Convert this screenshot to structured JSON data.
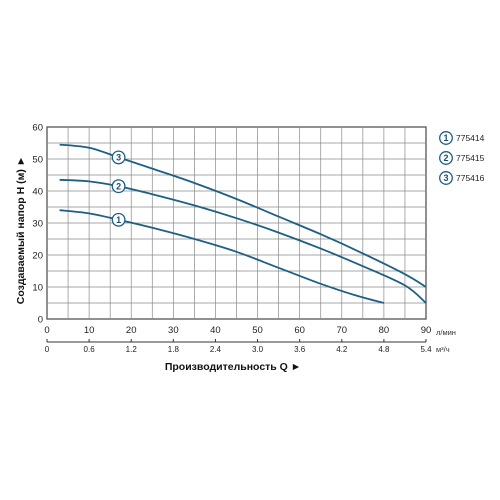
{
  "chart_data": {
    "type": "line",
    "xlabel": "Производительность Q ►",
    "ylabel": "Создаваемый напор H (м) ►",
    "x_unit_primary": "л/мин",
    "x_unit_secondary": "м³/ч",
    "xlim": [
      0,
      90
    ],
    "ylim": [
      0,
      60
    ],
    "x_ticks": [
      "0",
      "10",
      "20",
      "30",
      "40",
      "50",
      "60",
      "70",
      "80",
      "90"
    ],
    "x_ticks_secondary": [
      "0",
      "0.6",
      "1.2",
      "1.8",
      "2.4",
      "3.0",
      "3.6",
      "4.2",
      "4.8",
      "5.4"
    ],
    "y_ticks": [
      "0",
      "10",
      "20",
      "30",
      "40",
      "50",
      "60"
    ],
    "grid": true,
    "legend_position": "right",
    "color": "#1e5f84",
    "series": [
      {
        "name": "775414",
        "marker": "1",
        "x": [
          3,
          10,
          17,
          25,
          35,
          45,
          55,
          65,
          73,
          80
        ],
        "y": [
          34,
          33,
          31,
          28.5,
          25,
          21,
          16,
          11,
          7.5,
          5
        ]
      },
      {
        "name": "775415",
        "marker": "2",
        "x": [
          3,
          10,
          17,
          25,
          35,
          45,
          55,
          65,
          75,
          85,
          90
        ],
        "y": [
          43.5,
          43,
          41.5,
          39,
          35.5,
          31.5,
          27,
          22,
          16.5,
          10.5,
          5
        ]
      },
      {
        "name": "775416",
        "marker": "3",
        "x": [
          3,
          10,
          17,
          25,
          35,
          45,
          55,
          65,
          75,
          85,
          90
        ],
        "y": [
          54.5,
          53.5,
          50.5,
          47,
          42.5,
          37.5,
          32,
          26.5,
          20.5,
          14,
          10
        ]
      }
    ]
  }
}
